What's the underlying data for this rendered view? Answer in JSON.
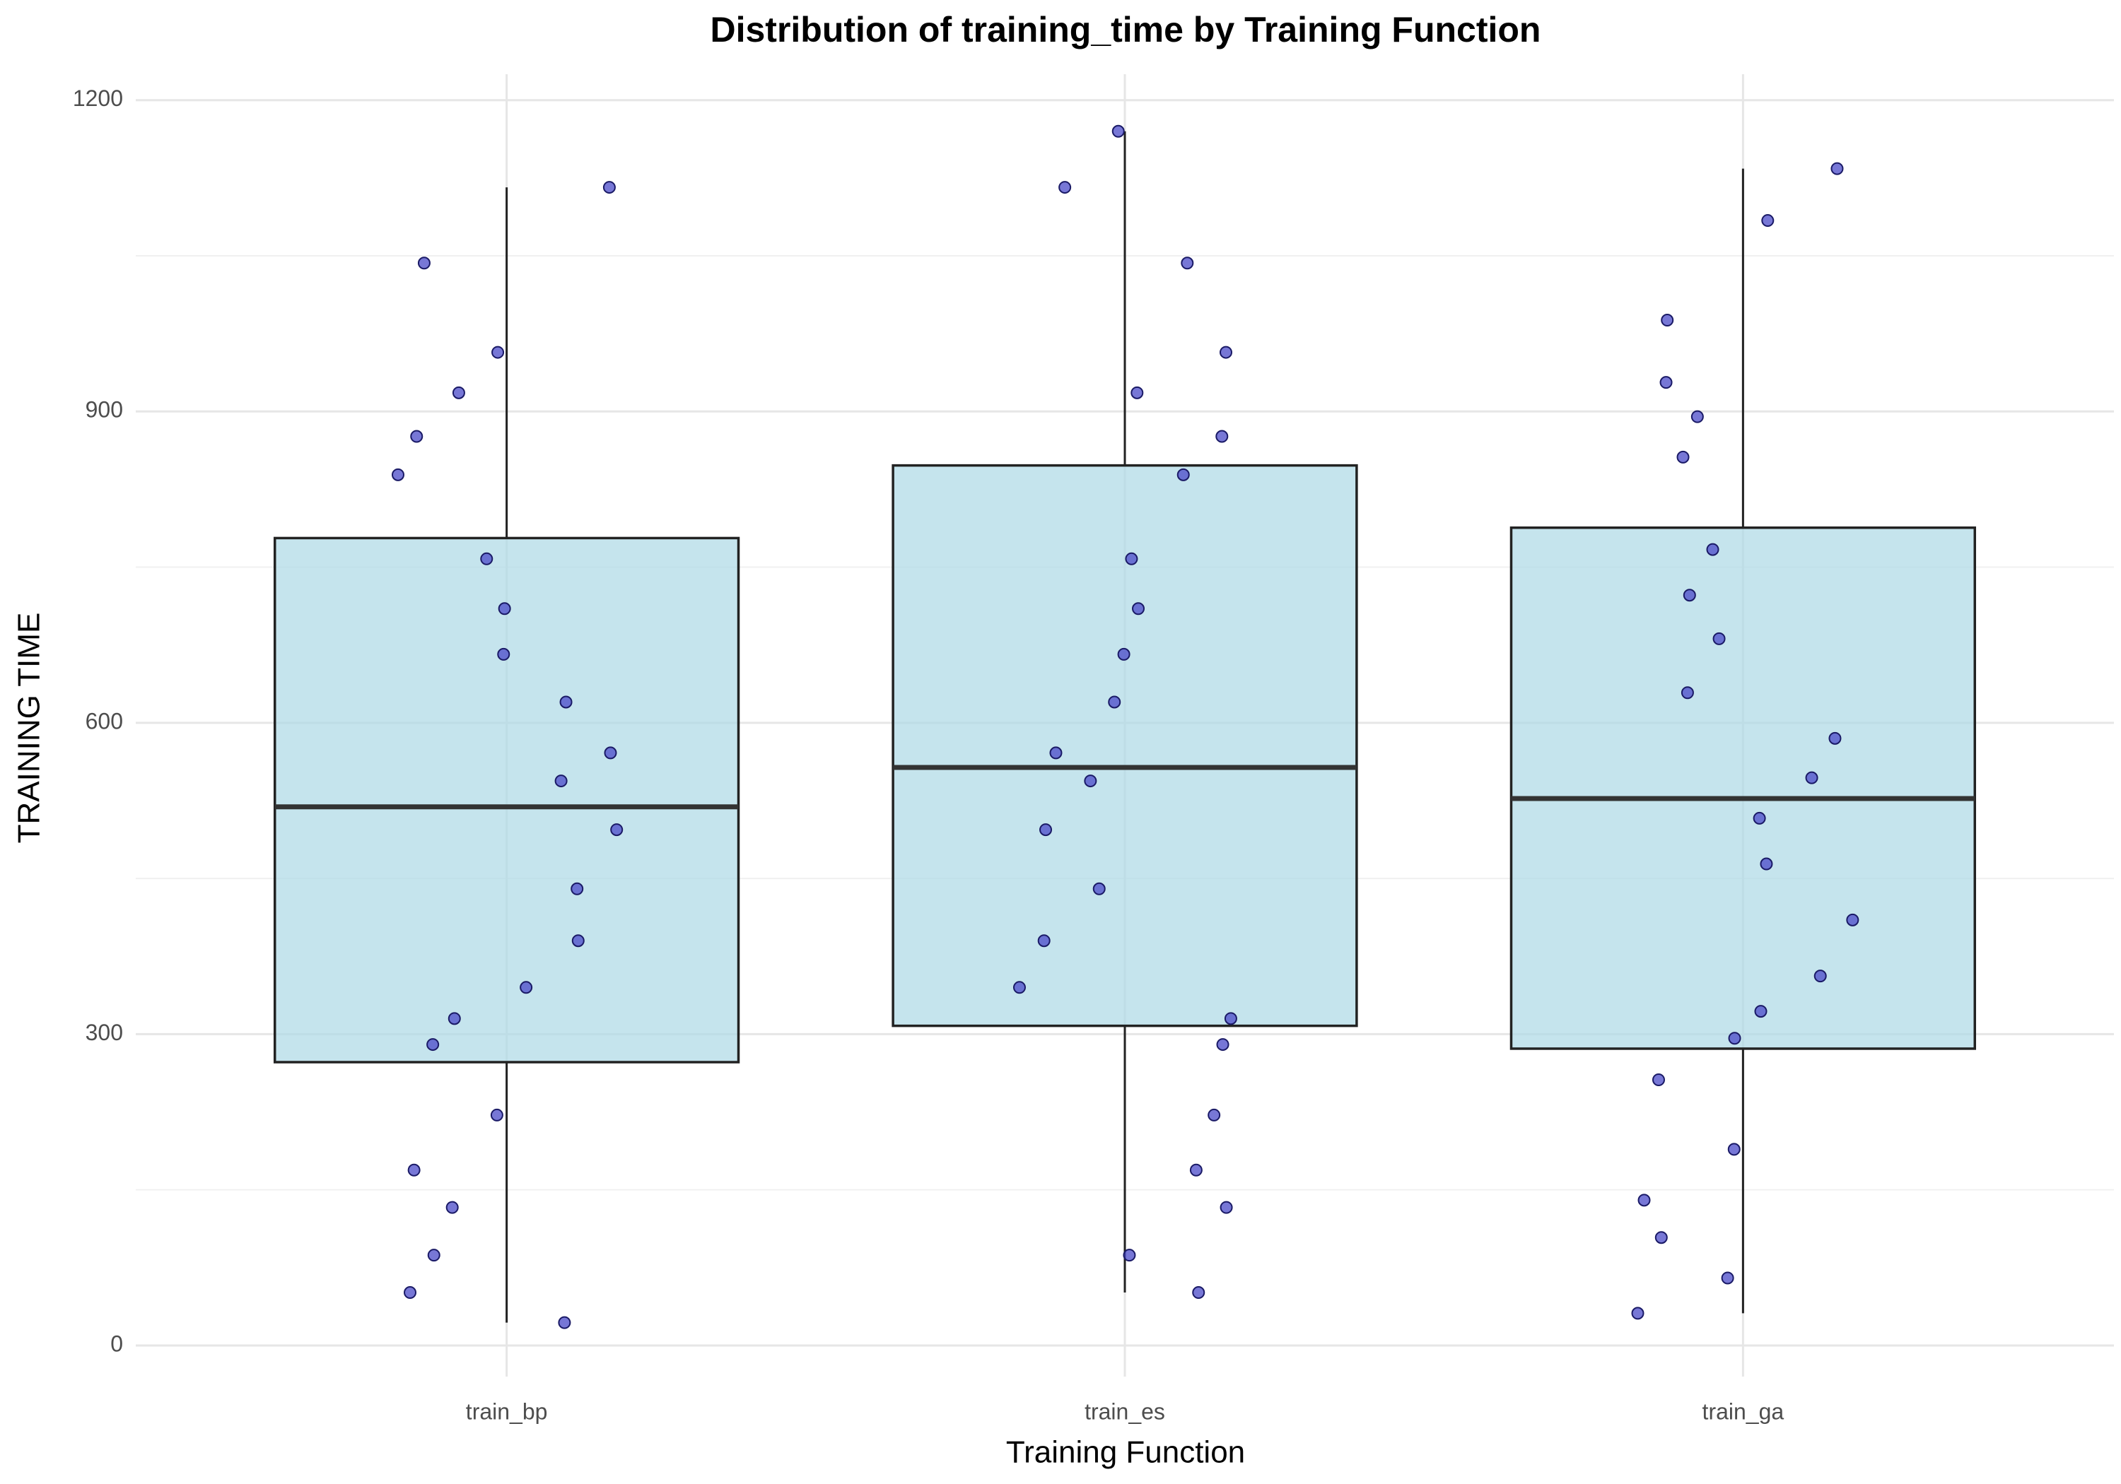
{
  "chart_data": {
    "type": "box",
    "title": "Distribution of training_time by Training Function",
    "x_label": "Training Function",
    "y_label": "TRAINING TIME",
    "categories": [
      "train_bp",
      "train_es",
      "train_ga"
    ],
    "boxes": [
      {
        "whisker_low": 22,
        "q1": 273,
        "median": 519,
        "q3": 778,
        "whisker_high": 1116
      },
      {
        "whisker_low": 51,
        "q1": 308,
        "median": 557,
        "q3": 848,
        "whisker_high": 1170
      },
      {
        "whisker_low": 31,
        "q1": 286,
        "median": 527,
        "q3": 788,
        "whisker_high": 1134
      }
    ],
    "points": [
      [
        1116,
        1043,
        957,
        918,
        876,
        839,
        758,
        710,
        666,
        620,
        571,
        544,
        497,
        440,
        390,
        345,
        315,
        290,
        222,
        169,
        133,
        87,
        51,
        22
      ],
      [
        1170,
        1116,
        1043,
        957,
        918,
        876,
        839,
        758,
        710,
        666,
        620,
        571,
        544,
        497,
        440,
        390,
        345,
        315,
        290,
        222,
        169,
        133,
        87,
        51
      ],
      [
        1134,
        1084,
        988,
        928,
        895,
        856,
        767,
        723,
        681,
        629,
        585,
        547,
        508,
        464,
        410,
        356,
        322,
        296,
        256,
        189,
        140,
        104,
        65,
        31
      ]
    ],
    "box_color": "#add8e6",
    "point_color": "#4a4ac8",
    "ylim": [
      -30,
      1225
    ],
    "yticks": [
      0,
      300,
      600,
      900,
      1200
    ],
    "minor_yticks": [
      150,
      450,
      750,
      1050
    ],
    "grid": true
  }
}
